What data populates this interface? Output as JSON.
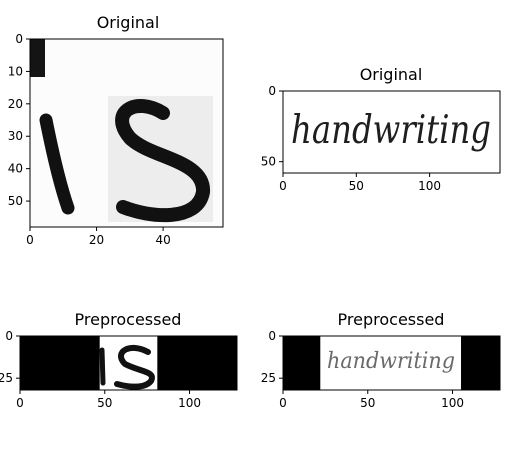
{
  "chart_data": [
    {
      "type": "image",
      "title": "Original",
      "image_content": "is",
      "xlim": [
        0,
        58
      ],
      "ylim": [
        58,
        0
      ],
      "xticks": [
        0,
        20,
        40
      ],
      "yticks": [
        0,
        10,
        20,
        30,
        40,
        50
      ],
      "xtick_labels": [
        "0",
        "20",
        "40"
      ],
      "ytick_labels": [
        "0",
        "10",
        "20",
        "30",
        "40",
        "50"
      ]
    },
    {
      "type": "image",
      "title": "Original",
      "image_content": "handwriting",
      "xlim": [
        0,
        148
      ],
      "ylim": [
        58,
        0
      ],
      "xticks": [
        0,
        50,
        100
      ],
      "yticks": [
        0,
        50
      ],
      "xtick_labels": [
        "0",
        "50",
        "100"
      ],
      "ytick_labels": [
        "0",
        "50"
      ]
    },
    {
      "type": "image",
      "title": "Preprocessed",
      "image_content": "is",
      "xlim": [
        0,
        128
      ],
      "ylim": [
        32,
        0
      ],
      "content_span": [
        47,
        81
      ],
      "xticks": [
        0,
        50,
        100
      ],
      "yticks": [
        0,
        25
      ],
      "xtick_labels": [
        "0",
        "50",
        "100"
      ],
      "ytick_labels": [
        "0",
        "25"
      ]
    },
    {
      "type": "image",
      "title": "Preprocessed",
      "image_content": "handwriting",
      "xlim": [
        0,
        128
      ],
      "ylim": [
        32,
        0
      ],
      "content_span": [
        22,
        105
      ],
      "xticks": [
        0,
        50,
        100
      ],
      "yticks": [
        0,
        25
      ],
      "xtick_labels": [
        "0",
        "50",
        "100"
      ],
      "ytick_labels": [
        "0",
        "25"
      ]
    }
  ]
}
